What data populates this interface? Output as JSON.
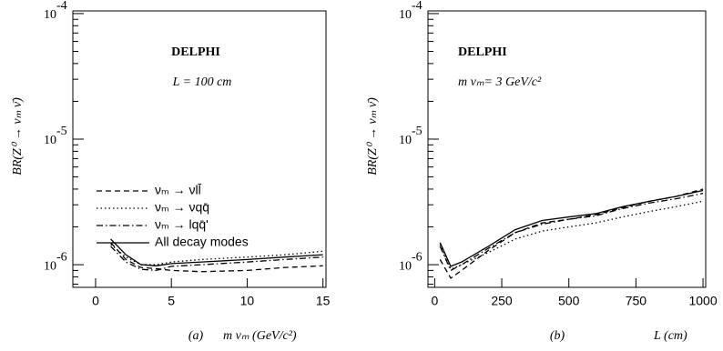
{
  "chart_data": [
    {
      "type": "line",
      "log_y": true,
      "color": "#000000",
      "experiment": "DELPHI",
      "subtitle": "L = 100 cm",
      "panel_label": "(a)",
      "xlabel": "m νₘ (GeV/c²)",
      "ylabel": "BR(Z⁰ → νₘ ν̄)",
      "xlim": [
        -1.5,
        15.2
      ],
      "xticks": [
        0,
        5,
        10,
        15
      ],
      "ylim": [
        6.6e-07,
        0.000105
      ],
      "yticks": [
        {
          "value": 1e-06,
          "label": "10",
          "exponent": "-6"
        },
        {
          "value": 1e-05,
          "label": "10",
          "exponent": "-5"
        },
        {
          "value": 0.0001,
          "label": "10",
          "exponent": "-4"
        }
      ],
      "x": [
        1,
        2,
        3,
        4,
        5,
        7,
        10,
        12.5,
        15
      ],
      "series": [
        {
          "name": "νₘ → νll̄",
          "dash": "dashed",
          "values": [
            1.5e-06,
            1.1e-06,
            9.5e-07,
            9.3e-07,
            9e-07,
            8.8e-07,
            9e-07,
            9.5e-07,
            9.8e-07
          ]
        },
        {
          "name": "νₘ → νqq̄",
          "dash": "dotted",
          "values": [
            1.45e-06,
            1.15e-06,
            1e-06,
            1e-06,
            1.05e-06,
            1.1e-06,
            1.15e-06,
            1.2e-06,
            1.28e-06
          ]
        },
        {
          "name": "νₘ → lqq̄'",
          "dash": "dashdot",
          "values": [
            1.4e-06,
            1.05e-06,
            9.2e-07,
            9e-07,
            9.7e-07,
            1e-06,
            1.05e-06,
            1.1e-06,
            1.15e-06
          ]
        },
        {
          "name": "All decay modes",
          "dash": "solid",
          "values": [
            1.6e-06,
            1.2e-06,
            1e-06,
            9.8e-07,
            1.02e-06,
            1.05e-06,
            1.1e-06,
            1.15e-06,
            1.2e-06
          ]
        }
      ]
    },
    {
      "type": "line",
      "log_y": true,
      "color": "#000000",
      "experiment": "DELPHI",
      "subtitle": "m νₘ= 3 GeV/c²",
      "panel_label": "(b)",
      "xlabel": "L (cm)",
      "ylabel": "BR(Z⁰ → νₘ ν̄)",
      "xlim": [
        -25,
        1010
      ],
      "xticks": [
        0,
        250,
        500,
        750,
        1000
      ],
      "ylim": [
        6.6e-07,
        0.000105
      ],
      "yticks": [
        {
          "value": 1e-06,
          "label": "10",
          "exponent": "-6"
        },
        {
          "value": 1e-05,
          "label": "10",
          "exponent": "-5"
        },
        {
          "value": 0.0001,
          "label": "10",
          "exponent": "-4"
        }
      ],
      "x": [
        20,
        60,
        100,
        200,
        300,
        400,
        500,
        600,
        700,
        800,
        900,
        1000
      ],
      "series": [
        {
          "dash": "dashed",
          "values": [
            1.1e-06,
            7.8e-07,
            9e-07,
            1.3e-06,
            1.8e-06,
            2.15e-06,
            2.3e-06,
            2.5e-06,
            2.85e-06,
            3.2e-06,
            3.5e-06,
            4e-06
          ]
        },
        {
          "dash": "dotted",
          "values": [
            1.45e-06,
            9.2e-07,
            1e-06,
            1.25e-06,
            1.6e-06,
            1.85e-06,
            2e-06,
            2.15e-06,
            2.4e-06,
            2.65e-06,
            2.9e-06,
            3.2e-06
          ]
        },
        {
          "dash": "dashdot",
          "values": [
            1.4e-06,
            9e-07,
            1e-06,
            1.35e-06,
            1.8e-06,
            2.1e-06,
            2.3e-06,
            2.45e-06,
            2.8e-06,
            3.1e-06,
            3.35e-06,
            3.7e-06
          ]
        },
        {
          "dash": "solid",
          "values": [
            1.5e-06,
            9.7e-07,
            1.05e-06,
            1.4e-06,
            1.9e-06,
            2.25e-06,
            2.4e-06,
            2.55e-06,
            2.9e-06,
            3.2e-06,
            3.5e-06,
            3.9e-06
          ]
        }
      ]
    }
  ]
}
